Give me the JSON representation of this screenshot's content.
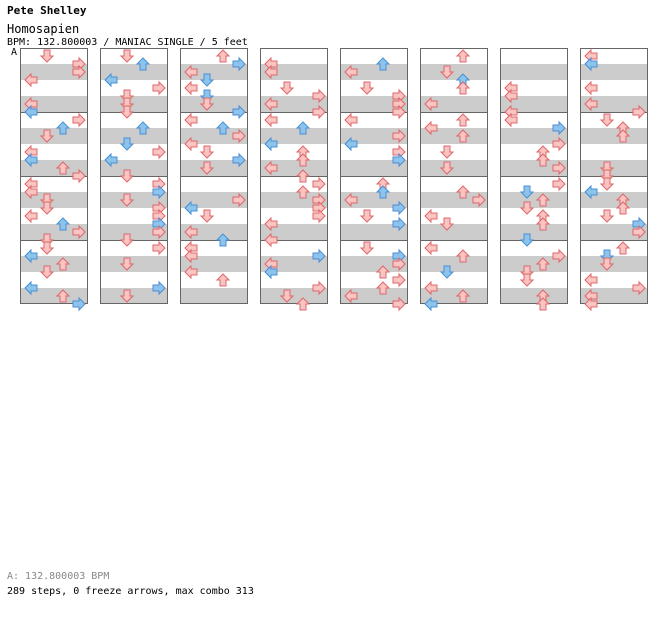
{
  "artist": "Pete Shelley",
  "song_title": "Homosapien",
  "meta_line": "BPM: 132.800003 / MANIAC SINGLE / 5 feet",
  "bpm_marker": "A",
  "bpm_note": "A: 132.800003 BPM",
  "stats_line": "289 steps, 0 freeze arrows, max combo 313",
  "colors": {
    "stripe": "#cccccc",
    "column_border": "#666666",
    "arrow_red_fill": "#f8c4c4",
    "arrow_red_stroke": "#e06666",
    "arrow_blue_fill": "#8cc4ee",
    "arrow_blue_stroke": "#4a8ed0"
  },
  "chart_data": {
    "type": "step_chart",
    "lanes": [
      "left",
      "down",
      "up",
      "right"
    ],
    "columns": 8,
    "measures_per_column": 4,
    "total_steps": 289,
    "freeze_arrows": 0,
    "max_combo": 313
  }
}
